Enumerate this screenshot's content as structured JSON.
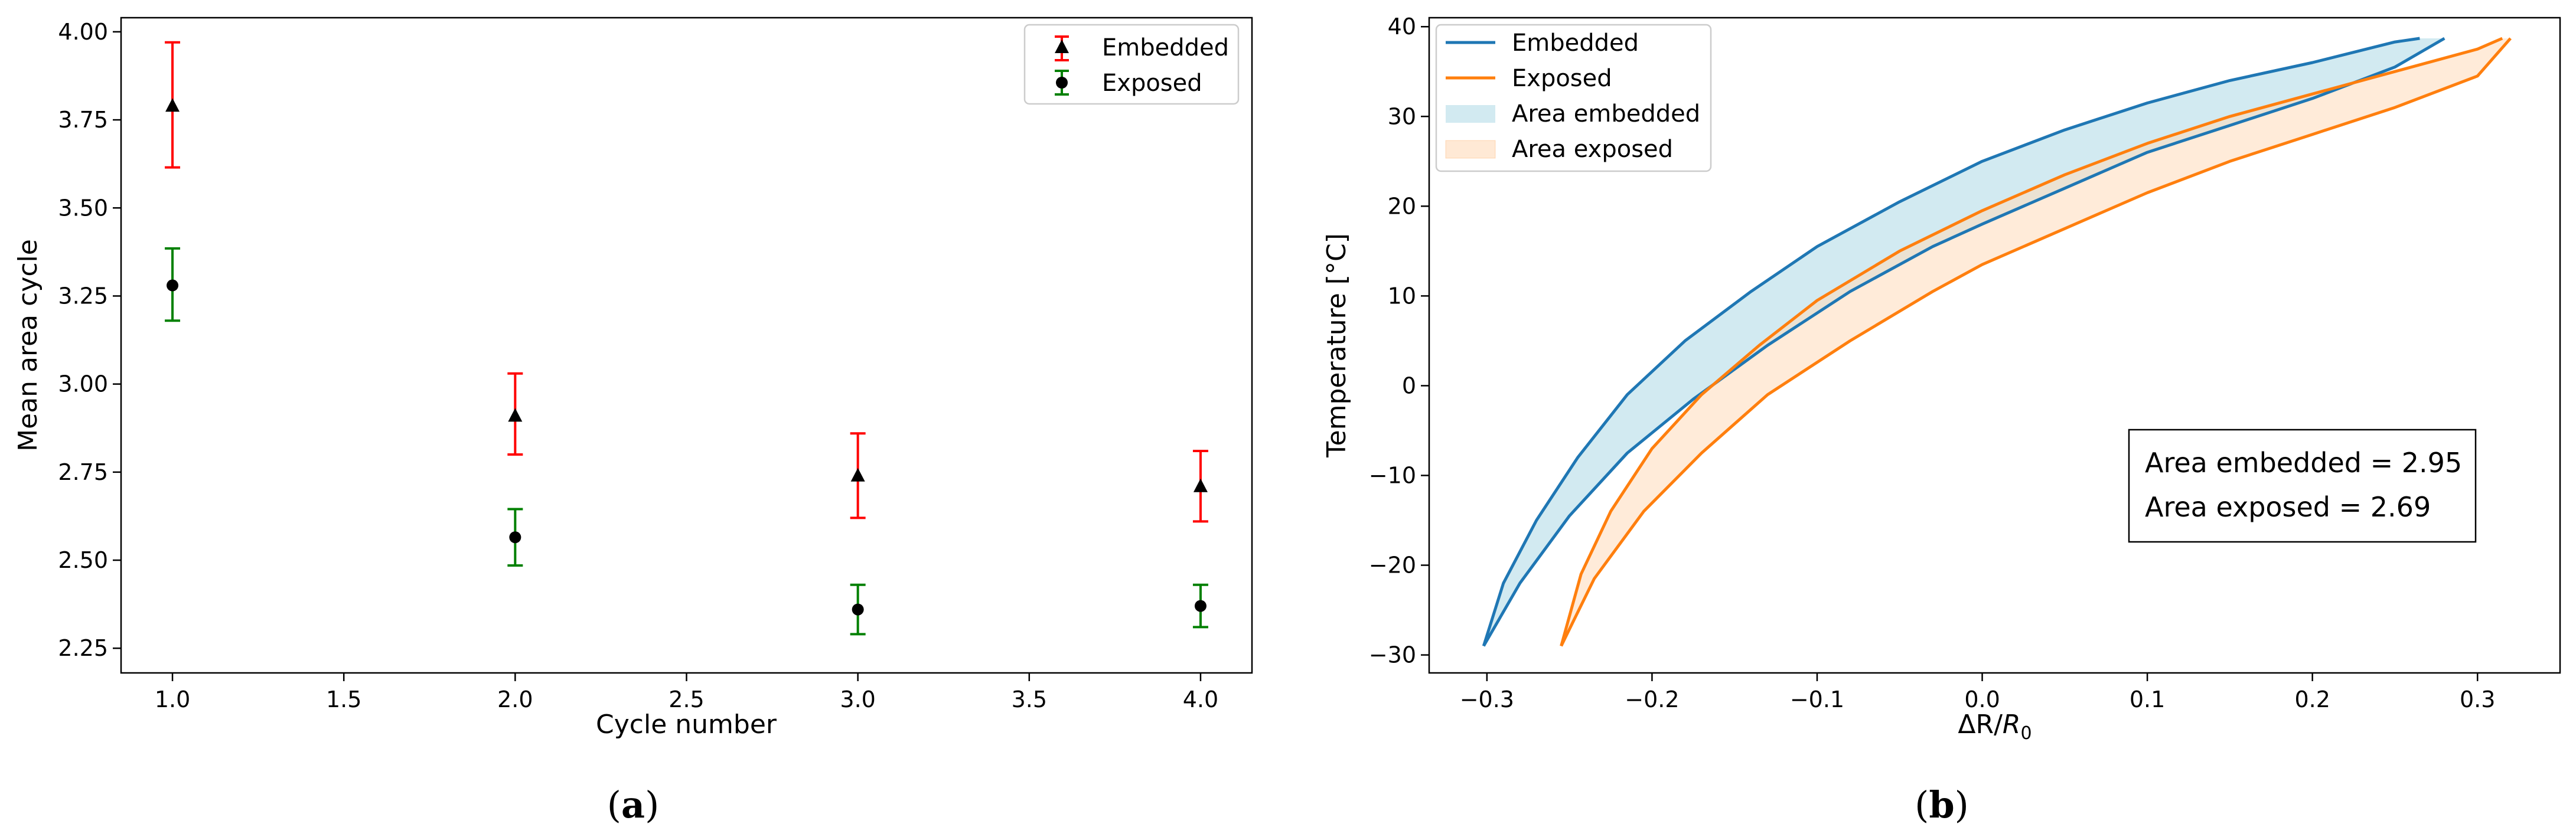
{
  "chart_data": [
    {
      "type": "scatter",
      "panel": "(a)",
      "xlabel": "Cycle number",
      "ylabel": "Mean area cycle",
      "xlim": [
        0.85,
        4.15
      ],
      "ylim": [
        2.18,
        4.04
      ],
      "xticks": [
        "1.0",
        "1.5",
        "2.0",
        "2.5",
        "3.0",
        "3.5",
        "4.0"
      ],
      "yticks": [
        "2.25",
        "2.50",
        "2.75",
        "3.00",
        "3.25",
        "3.50",
        "3.75",
        "4.00"
      ],
      "legend": "top-right",
      "series": [
        {
          "name": "Embedded",
          "marker": "triangle",
          "errorbar_color": "#ff0000",
          "x": [
            1.0,
            2.0,
            3.0,
            4.0
          ],
          "y": [
            3.79,
            2.91,
            2.74,
            2.71
          ],
          "err_low": [
            3.615,
            2.8,
            2.62,
            2.61
          ],
          "err_high": [
            3.97,
            3.03,
            2.86,
            2.81
          ]
        },
        {
          "name": "Exposed",
          "marker": "circle",
          "errorbar_color": "#008000",
          "x": [
            1.0,
            2.0,
            3.0,
            4.0
          ],
          "y": [
            3.28,
            2.565,
            2.36,
            2.37
          ],
          "err_low": [
            3.18,
            2.485,
            2.29,
            2.31
          ],
          "err_high": [
            3.385,
            2.645,
            2.43,
            2.43
          ]
        }
      ]
    },
    {
      "type": "line",
      "panel": "(b)",
      "xlabel_main": "ΔR/",
      "xlabel_var": "R",
      "xlabel_sub": "0",
      "ylabel": "Temperature [°C]",
      "xlim": [
        -0.335,
        0.35
      ],
      "ylim": [
        -32,
        41
      ],
      "xticks": [
        "−0.3",
        "−0.2",
        "−0.1",
        "0.0",
        "0.1",
        "0.2",
        "0.3"
      ],
      "yticks": [
        "−30",
        "−20",
        "−10",
        "0",
        "10",
        "20",
        "30",
        "40"
      ],
      "legend": "top-left",
      "series": [
        {
          "name": "Embedded",
          "color": "#1f77b4",
          "upper": [
            [
              -0.302,
              -29
            ],
            [
              -0.29,
              -22
            ],
            [
              -0.27,
              -15
            ],
            [
              -0.245,
              -8
            ],
            [
              -0.215,
              -1
            ],
            [
              -0.18,
              5
            ],
            [
              -0.14,
              10.5
            ],
            [
              -0.1,
              15.5
            ],
            [
              -0.05,
              20.5
            ],
            [
              0.0,
              25
            ],
            [
              0.05,
              28.5
            ],
            [
              0.1,
              31.5
            ],
            [
              0.15,
              34
            ],
            [
              0.2,
              36
            ],
            [
              0.25,
              38.3
            ],
            [
              0.265,
              38.7
            ]
          ],
          "lower": [
            [
              -0.302,
              -29
            ],
            [
              -0.28,
              -22
            ],
            [
              -0.25,
              -14.5
            ],
            [
              -0.215,
              -7.5
            ],
            [
              -0.175,
              -1.5
            ],
            [
              -0.13,
              4.5
            ],
            [
              -0.08,
              10.5
            ],
            [
              -0.03,
              15.5
            ],
            [
              0.0,
              18
            ],
            [
              0.05,
              22
            ],
            [
              0.1,
              26
            ],
            [
              0.15,
              29
            ],
            [
              0.2,
              32
            ],
            [
              0.25,
              35.5
            ],
            [
              0.28,
              38.7
            ]
          ]
        },
        {
          "name": "Exposed",
          "color": "#ff7f0e",
          "upper": [
            [
              -0.255,
              -29
            ],
            [
              -0.243,
              -21
            ],
            [
              -0.225,
              -14
            ],
            [
              -0.2,
              -7
            ],
            [
              -0.17,
              -1
            ],
            [
              -0.135,
              4.5
            ],
            [
              -0.1,
              9.5
            ],
            [
              -0.05,
              15
            ],
            [
              0.0,
              19.5
            ],
            [
              0.05,
              23.5
            ],
            [
              0.1,
              27
            ],
            [
              0.15,
              30
            ],
            [
              0.2,
              32.5
            ],
            [
              0.25,
              35
            ],
            [
              0.3,
              37.5
            ],
            [
              0.315,
              38.7
            ]
          ],
          "lower": [
            [
              -0.255,
              -29
            ],
            [
              -0.235,
              -21.5
            ],
            [
              -0.205,
              -14
            ],
            [
              -0.17,
              -7.5
            ],
            [
              -0.13,
              -1
            ],
            [
              -0.08,
              5
            ],
            [
              -0.03,
              10.5
            ],
            [
              0.0,
              13.5
            ],
            [
              0.05,
              17.5
            ],
            [
              0.1,
              21.5
            ],
            [
              0.15,
              25
            ],
            [
              0.2,
              28
            ],
            [
              0.25,
              31
            ],
            [
              0.3,
              34.5
            ],
            [
              0.32,
              38.7
            ]
          ]
        }
      ],
      "area_legend": [
        "Area embedded",
        "Area exposed"
      ],
      "area_colors": [
        "#add8e6",
        "#ffdab9"
      ],
      "annotation": [
        "Area embedded = 2.95",
        "Area exposed = 2.69"
      ]
    }
  ],
  "captions": [
    "(a)",
    "(b)"
  ]
}
